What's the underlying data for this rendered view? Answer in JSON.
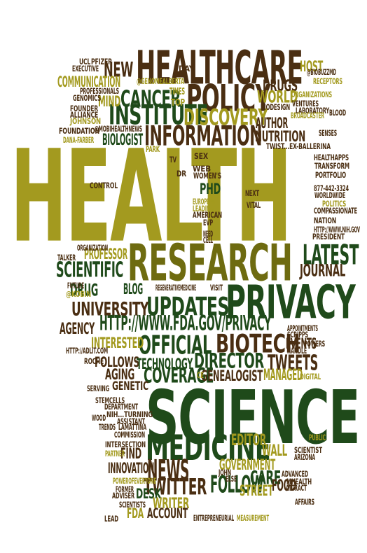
{
  "words": [
    {
      "text": "HEALTH",
      "color": "c3"
    },
    {
      "text": "SCIENCE",
      "color": "c1"
    },
    {
      "text": "RESEARCH",
      "color": "c2"
    },
    {
      "text": "HEALTHCARE",
      "color": "c4"
    },
    {
      "text": "POLICY",
      "color": "c4"
    },
    {
      "text": "PRIVACY",
      "color": "c1"
    },
    {
      "text": "MEDICINE",
      "color": "c1"
    },
    {
      "text": "INSTITUTE",
      "color": "c1"
    },
    {
      "text": "INFORMATION",
      "color": "c4"
    },
    {
      "text": "HTTP://WWW.FDA.GOV/PRIVACY",
      "color": "c1"
    },
    {
      "text": "OFFICIAL",
      "color": "c1"
    },
    {
      "text": "BIOTECH",
      "color": "c4"
    },
    {
      "text": "UPDATES",
      "color": "c1"
    },
    {
      "text": "LATEST",
      "color": "c1"
    },
    {
      "text": "NEWS",
      "color": "c4"
    },
    {
      "text": "TWEETS",
      "color": "c4"
    },
    {
      "text": "DIRECTOR",
      "color": "c1"
    },
    {
      "text": "COVERAGE",
      "color": "c1"
    },
    {
      "text": "TWITTER",
      "color": "c4"
    },
    {
      "text": "FOLLOW",
      "color": "c1"
    },
    {
      "text": "DISCOVERY",
      "color": "c3"
    },
    {
      "text": "CANCER",
      "color": "c1"
    },
    {
      "text": "SCIENTIFIC",
      "color": "c1"
    },
    {
      "text": "UNIVERSITY",
      "color": "c4"
    },
    {
      "text": "NEW",
      "color": "c4"
    },
    {
      "text": "DRUGS",
      "color": "c4"
    },
    {
      "text": "WORLD",
      "color": "c3"
    },
    {
      "text": "HOST",
      "color": "c3"
    },
    {
      "text": "AUTHOR",
      "color": "c4"
    },
    {
      "text": "NUTRITION",
      "color": "c4"
    },
    {
      "text": "BIOLOGIST",
      "color": "c1"
    },
    {
      "text": "PROFESSOR",
      "color": "c3"
    },
    {
      "text": "DRUG",
      "color": "c1"
    },
    {
      "text": "JOURNAL",
      "color": "c4"
    },
    {
      "text": "AGENCY",
      "color": "c4"
    },
    {
      "text": "INTERESTED",
      "color": "c3"
    },
    {
      "text": "EVENTS",
      "color": "c4"
    },
    {
      "text": "FOLLOWS",
      "color": "c4"
    },
    {
      "text": "TECHNOLOGY",
      "color": "c1"
    },
    {
      "text": "AGING",
      "color": "c4"
    },
    {
      "text": "GENEALOGIST",
      "color": "c4"
    },
    {
      "text": "MANAGED",
      "color": "c3"
    },
    {
      "text": "GENETIC",
      "color": "c4"
    },
    {
      "text": "GOVERNMENT",
      "color": "c3"
    },
    {
      "text": "EDITOR",
      "color": "c3"
    },
    {
      "text": "WALL",
      "color": "c3"
    },
    {
      "text": "CARE",
      "color": "c1"
    },
    {
      "text": "STREET",
      "color": "c3"
    },
    {
      "text": "FOOD",
      "color": "c4"
    },
    {
      "text": "INNOVATION",
      "color": "c4"
    },
    {
      "text": "FIND",
      "color": "c4"
    },
    {
      "text": "DESK",
      "color": "c1"
    },
    {
      "text": "WRITER",
      "color": "c3"
    },
    {
      "text": "ACCOUNT",
      "color": "c4"
    },
    {
      "text": "FDA",
      "color": "c3"
    },
    {
      "text": "COMMUNICATION",
      "color": "c3"
    },
    {
      "text": "MIND",
      "color": "c3"
    },
    {
      "text": "BLOG",
      "color": "c1"
    },
    {
      "text": "PHD",
      "color": "c1"
    },
    {
      "text": "UCL",
      "color": "c4"
    },
    {
      "text": "PFIZER",
      "color": "c4"
    },
    {
      "text": "EXECUTIVE",
      "color": "c4"
    },
    {
      "text": "@GENOMEALBERTA",
      "color": "c3"
    },
    {
      "text": "DAY",
      "color": "c4"
    },
    {
      "text": "PROFESSIONALS",
      "color": "c4"
    },
    {
      "text": "GENOMICS",
      "color": "c4"
    },
    {
      "text": "TIMES",
      "color": "c3"
    },
    {
      "text": "TOP",
      "color": "c3"
    },
    {
      "text": "FOUNDER",
      "color": "c4"
    },
    {
      "text": "ALLIANCE",
      "color": "c4"
    },
    {
      "text": "JOHNSON",
      "color": "c3"
    },
    {
      "text": "FOUNDATION",
      "color": "c4"
    },
    {
      "text": "@MOBIHEALTHNEWS",
      "color": "c4"
    },
    {
      "text": "DANA-FARBER",
      "color": "c3"
    },
    {
      "text": "@BIOBUZZMD",
      "color": "c4"
    },
    {
      "text": "RECEPTORS",
      "color": "c3"
    },
    {
      "text": "ORGANIZATIONS",
      "color": "c3"
    },
    {
      "text": "VENTURES",
      "color": "c4"
    },
    {
      "text": "LABORATORY",
      "color": "c4"
    },
    {
      "text": "BIODESIGN",
      "color": "c4"
    },
    {
      "text": "BROADCASTER",
      "color": "c3"
    },
    {
      "text": "BLOOD",
      "color": "c4"
    },
    {
      "text": "SENSES",
      "color": "c4"
    },
    {
      "text": "TWIST...EX-BALLERINA",
      "color": "c4"
    },
    {
      "text": "PARK",
      "color": "c3"
    },
    {
      "text": "TV",
      "color": "c4"
    },
    {
      "text": "DR",
      "color": "c4"
    },
    {
      "text": "SEX",
      "color": "c4"
    },
    {
      "text": "WEB",
      "color": "c4"
    },
    {
      "text": "WOMEN'S",
      "color": "c4"
    },
    {
      "text": "HEALTHAPPS",
      "color": "c4"
    },
    {
      "text": "TRANSFORM",
      "color": "c4"
    },
    {
      "text": "PORTFOLIO",
      "color": "c4"
    },
    {
      "text": "877-442-3324",
      "color": "c4"
    },
    {
      "text": "WORLDWIDE",
      "color": "c4"
    },
    {
      "text": "POLITICS",
      "color": "c3"
    },
    {
      "text": "COMPASSIONATE",
      "color": "c4"
    },
    {
      "text": "NATION",
      "color": "c4"
    },
    {
      "text": "HTTP://WWW.NIH.GOV",
      "color": "c4"
    },
    {
      "text": "PRESIDENT",
      "color": "c4"
    },
    {
      "text": "CONTROL",
      "color": "c4"
    },
    {
      "text": "NEXT",
      "color": "c4"
    },
    {
      "text": "VITAL",
      "color": "c4"
    },
    {
      "text": "EUROPEAN",
      "color": "c3"
    },
    {
      "text": "LEADING",
      "color": "c3"
    },
    {
      "text": "AMERICAN",
      "color": "c4"
    },
    {
      "text": "EVP",
      "color": "c4"
    },
    {
      "text": "NEED",
      "color": "c4"
    },
    {
      "text": "CELL",
      "color": "c4"
    },
    {
      "text": "ORGANIZATION",
      "color": "c4"
    },
    {
      "text": "TALKER",
      "color": "c4"
    },
    {
      "text": "FUTURE",
      "color": "c4"
    },
    {
      "text": "@KOBIN",
      "color": "c3"
    },
    {
      "text": "REGENERATIVEMEDICINE",
      "color": "c4"
    },
    {
      "text": "VISIT",
      "color": "c4"
    },
    {
      "text": "APPOINTMENTS",
      "color": "c4"
    },
    {
      "text": "SCRIPPS",
      "color": "c4"
    },
    {
      "text": "HTTP://ADLIT.COM",
      "color": "c4"
    },
    {
      "text": "HANDLE",
      "color": "c4"
    },
    {
      "text": "POWERS",
      "color": "c4"
    },
    {
      "text": "ROCHE",
      "color": "c4"
    },
    {
      "text": "DIGITAL",
      "color": "c3"
    },
    {
      "text": "CE",
      "color": "c3"
    },
    {
      "text": "SERVING",
      "color": "c4"
    },
    {
      "text": "STEMCELLS",
      "color": "c4"
    },
    {
      "text": "DEPARTMENT",
      "color": "c4"
    },
    {
      "text": "NIH...TURNING",
      "color": "c4"
    },
    {
      "text": "WOOD",
      "color": "c4"
    },
    {
      "text": "ASSISTANT",
      "color": "c4"
    },
    {
      "text": "TRENDS",
      "color": "c4"
    },
    {
      "text": "LAMATTINA",
      "color": "c4"
    },
    {
      "text": "COMMISSION",
      "color": "c4"
    },
    {
      "text": "INTERSECTION",
      "color": "c4"
    },
    {
      "text": "PARTNER",
      "color": "c3"
    },
    {
      "text": "PUBLIC",
      "color": "c3"
    },
    {
      "text": "SCIENTIST",
      "color": "c4"
    },
    {
      "text": "ARIZONA",
      "color": "c4"
    },
    {
      "text": "JOHN",
      "color": "c4"
    },
    {
      "text": "ADVANCED",
      "color": "c4"
    },
    {
      "text": "MHEALTH",
      "color": "c4"
    },
    {
      "text": "ATTRACT",
      "color": "c4"
    },
    {
      "text": "POWEROFEVERYONE",
      "color": "c3"
    },
    {
      "text": "ELSE",
      "color": "c4"
    },
    {
      "text": "FORMER",
      "color": "c4"
    },
    {
      "text": "ADVISER",
      "color": "c4"
    },
    {
      "text": "SCIENTISTS",
      "color": "c4"
    },
    {
      "text": "AFFAIRS",
      "color": "c4"
    },
    {
      "text": "LEAD",
      "color": "c4"
    },
    {
      "text": "ENTREPRENEURIAL",
      "color": "c4"
    },
    {
      "text": "MEASUREMENT",
      "color": "c3"
    }
  ]
}
